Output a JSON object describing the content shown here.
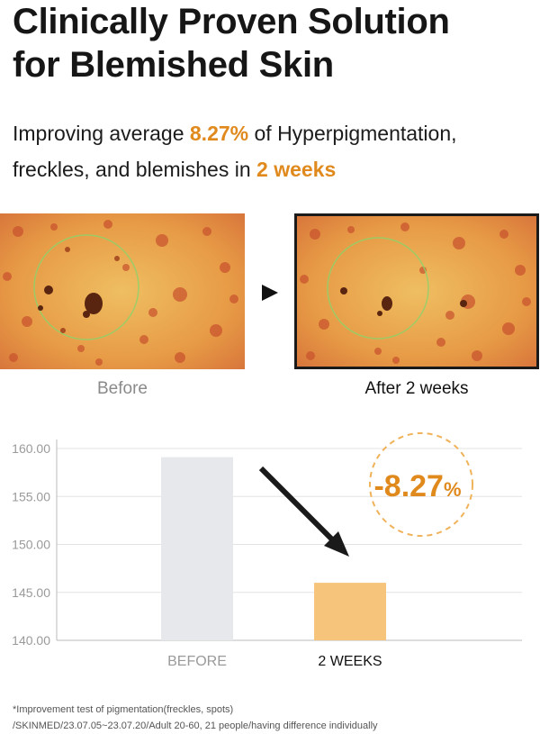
{
  "heading": {
    "line1": "Clinically Proven Solution",
    "line2": "for Blemished Skin"
  },
  "subtitle": {
    "part1": "Improving average ",
    "highlight1": "8.27%",
    "part2": " of Hyperpigmentation,",
    "part3": "freckles, and blemishes in ",
    "highlight2": "2 weeks"
  },
  "photos": {
    "before_caption": "Before",
    "after_caption": "After 2 weeks"
  },
  "colors": {
    "accent": "#e08a1e",
    "bar_before": "#e6e8ec",
    "bar_after": "#f7c47c"
  },
  "chart_data": {
    "type": "bar",
    "categories": [
      "BEFORE",
      "2 WEEKS"
    ],
    "values": [
      159.1,
      146.0
    ],
    "ylim": [
      140,
      160
    ],
    "yticks": [
      "140.00",
      "145.00",
      "150.00",
      "155.00",
      "160.00"
    ],
    "annotation": {
      "value": "-8.27",
      "unit": "%"
    },
    "grid": true
  },
  "footnotes": {
    "line1": "*Improvement test of pigmentation(freckles, spots)",
    "line2": "/SKINMED/23.07.05~23.07.20/Adult 20-60, 21 people/having difference individually"
  }
}
